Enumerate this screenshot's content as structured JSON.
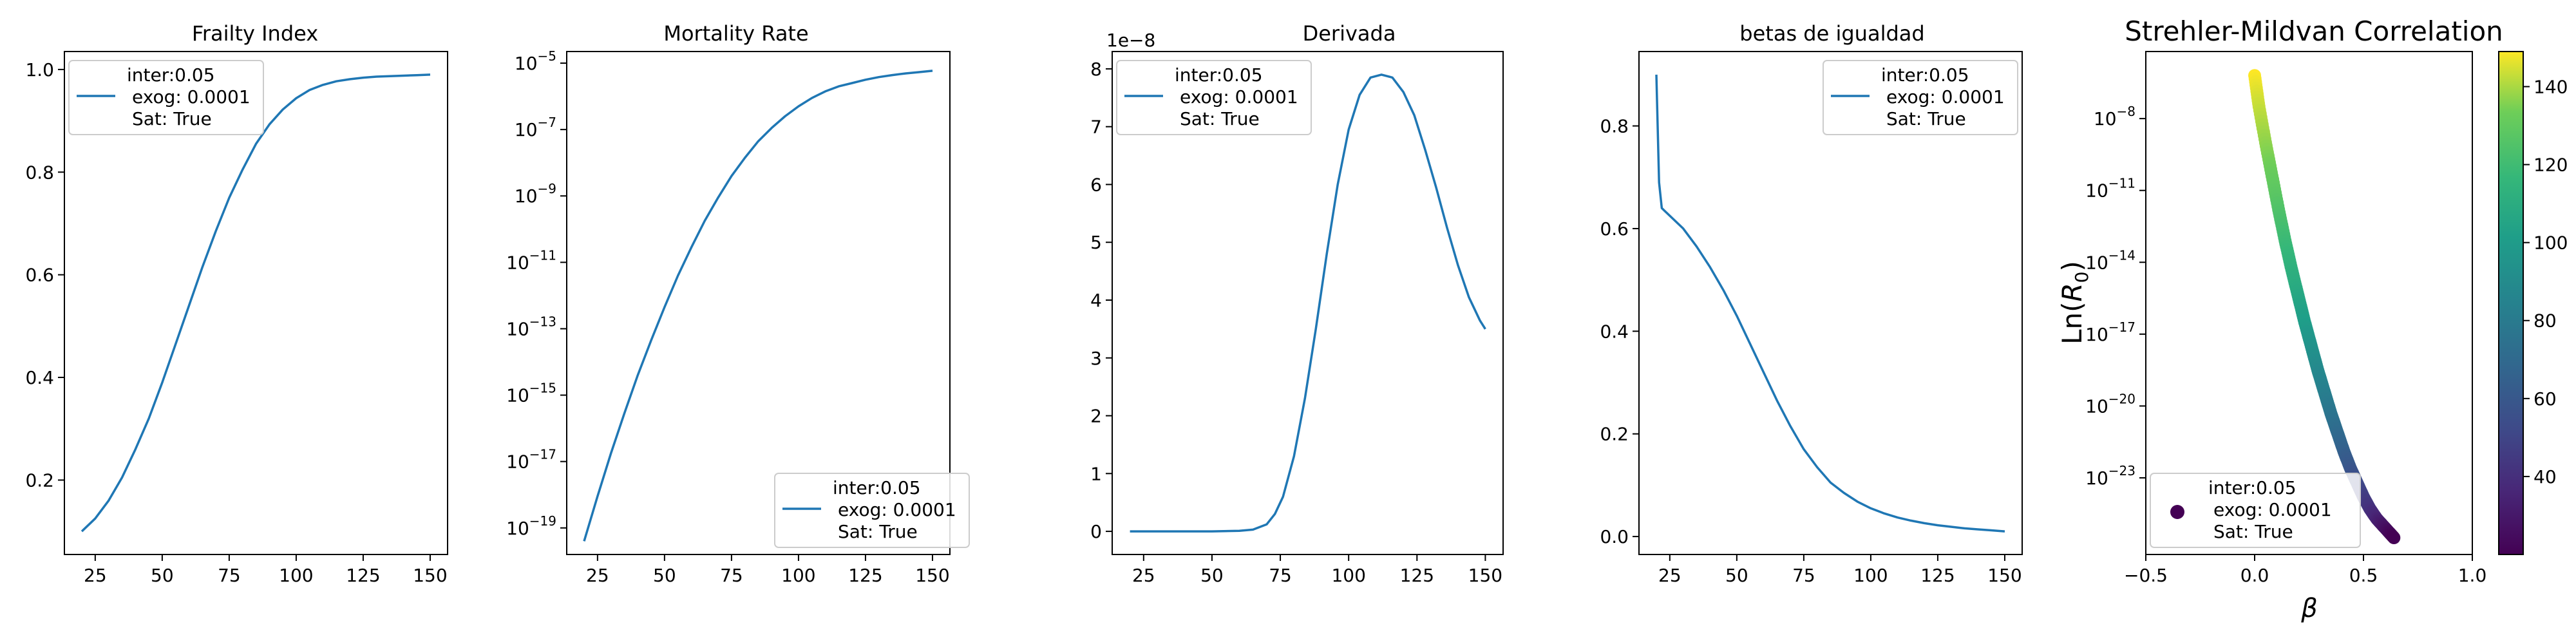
{
  "legend_lines": [
    "inter:0.05",
    "exog: 0.0001",
    "Sat: True"
  ],
  "line_color": "#1f77b4",
  "chart_data": [
    {
      "id": "frailty",
      "type": "line",
      "title": "Frailty Index",
      "xlim": [
        13.5,
        156.5
      ],
      "ylim": [
        0.055,
        1.035
      ],
      "x_ticks": [
        25,
        50,
        75,
        100,
        125,
        150
      ],
      "y_ticks": [
        0.2,
        0.4,
        0.6,
        0.8,
        1.0
      ],
      "y_tick_labels": [
        "0.2",
        "0.4",
        "0.6",
        "0.8",
        "1.0"
      ],
      "legend_loc": "upper-left",
      "x": [
        20,
        25,
        30,
        35,
        40,
        45,
        50,
        55,
        60,
        65,
        70,
        75,
        80,
        85,
        90,
        95,
        100,
        105,
        110,
        115,
        120,
        125,
        130,
        135,
        140,
        145,
        150
      ],
      "y": [
        0.1,
        0.125,
        0.16,
        0.205,
        0.26,
        0.32,
        0.39,
        0.465,
        0.54,
        0.615,
        0.685,
        0.75,
        0.805,
        0.855,
        0.893,
        0.922,
        0.944,
        0.96,
        0.97,
        0.977,
        0.981,
        0.984,
        0.986,
        0.987,
        0.988,
        0.989,
        0.99
      ]
    },
    {
      "id": "mortality",
      "type": "line",
      "title": "Mortality Rate",
      "yscale": "log",
      "xlim": [
        13.5,
        156.5
      ],
      "ylim_log10": [
        -19.8,
        -4.65
      ],
      "x_ticks": [
        25,
        50,
        75,
        100,
        125,
        150
      ],
      "y_ticks_log10": [
        -19,
        -17,
        -15,
        -13,
        -11,
        -9,
        -7,
        -5
      ],
      "y_tick_labels": [
        "-19",
        "-17",
        "-15",
        "-13",
        "-11",
        "-9",
        "-7",
        "-5"
      ],
      "legend_loc": "lower-right",
      "x": [
        20,
        25,
        30,
        35,
        40,
        45,
        50,
        55,
        60,
        65,
        70,
        75,
        80,
        85,
        90,
        95,
        100,
        105,
        110,
        115,
        120,
        125,
        130,
        135,
        140,
        145,
        150
      ],
      "y_log10": [
        -19.4,
        -18.05,
        -16.75,
        -15.55,
        -14.4,
        -13.35,
        -12.35,
        -11.4,
        -10.55,
        -9.75,
        -9.05,
        -8.4,
        -7.85,
        -7.35,
        -6.95,
        -6.6,
        -6.3,
        -6.05,
        -5.85,
        -5.7,
        -5.6,
        -5.5,
        -5.42,
        -5.36,
        -5.31,
        -5.27,
        -5.23
      ]
    },
    {
      "id": "derivada",
      "type": "line",
      "title": "Derivada",
      "scale_label": "1e−8",
      "xlim": [
        13.5,
        156.5
      ],
      "ylim": [
        -0.4,
        8.3
      ],
      "x_ticks": [
        25,
        50,
        75,
        100,
        125,
        150
      ],
      "y_ticks": [
        0,
        1,
        2,
        3,
        4,
        5,
        6,
        7,
        8
      ],
      "y_tick_labels": [
        "0",
        "1",
        "2",
        "3",
        "4",
        "5",
        "6",
        "7",
        "8"
      ],
      "legend_loc": "upper-left",
      "x": [
        20,
        30,
        40,
        50,
        60,
        65,
        70,
        73,
        76,
        80,
        84,
        88,
        92,
        96,
        100,
        104,
        108,
        112,
        116,
        120,
        124,
        128,
        132,
        136,
        140,
        144,
        148,
        150
      ],
      "y": [
        0,
        0,
        0,
        0,
        0.01,
        0.03,
        0.12,
        0.3,
        0.6,
        1.3,
        2.3,
        3.5,
        4.8,
        6.0,
        6.95,
        7.55,
        7.85,
        7.9,
        7.85,
        7.6,
        7.2,
        6.6,
        5.95,
        5.25,
        4.6,
        4.05,
        3.65,
        3.5
      ]
    },
    {
      "id": "betas",
      "type": "line",
      "title": "betas de igualdad",
      "xlim": [
        13.5,
        156.5
      ],
      "ylim": [
        -0.035,
        0.945
      ],
      "x_ticks": [
        25,
        50,
        75,
        100,
        125,
        150
      ],
      "y_ticks": [
        0.0,
        0.2,
        0.4,
        0.6,
        0.8
      ],
      "y_tick_labels": [
        "0.0",
        "0.2",
        "0.4",
        "0.6",
        "0.8"
      ],
      "legend_loc": "upper-right",
      "x": [
        20,
        21,
        22,
        23,
        25,
        30,
        35,
        40,
        45,
        50,
        55,
        60,
        65,
        70,
        75,
        80,
        85,
        90,
        95,
        100,
        105,
        110,
        115,
        120,
        125,
        130,
        135,
        140,
        145,
        150
      ],
      "y": [
        0.9,
        0.69,
        0.64,
        0.635,
        0.625,
        0.6,
        0.565,
        0.525,
        0.48,
        0.43,
        0.375,
        0.32,
        0.265,
        0.215,
        0.17,
        0.135,
        0.105,
        0.085,
        0.068,
        0.055,
        0.045,
        0.037,
        0.031,
        0.026,
        0.022,
        0.019,
        0.016,
        0.014,
        0.012,
        0.01
      ]
    },
    {
      "id": "strehler",
      "type": "scatter",
      "title": "Strehler-Mildvan Correlation",
      "xlabel": "β",
      "ylabel_prefix": "Ln(",
      "ylabel_var": "R",
      "ylabel_sub": "0",
      "ylabel_suffix": ")",
      "yscale": "log",
      "xlim": [
        -0.5,
        1.0
      ],
      "ylim_log10": [
        -26.2,
        -5.2
      ],
      "x_ticks": [
        -0.5,
        0.0,
        0.5,
        1.0
      ],
      "x_tick_labels": [
        "−0.5",
        "0.0",
        "0.5",
        "1.0"
      ],
      "y_ticks_log10": [
        -23,
        -20,
        -17,
        -14,
        -11,
        -8
      ],
      "y_tick_labels": [
        "-23",
        "-20",
        "-17",
        "-14",
        "-11",
        "-8"
      ],
      "legend_loc": "lower-left",
      "colorbar": {
        "min": 20,
        "max": 149,
        "ticks": [
          40,
          60,
          80,
          100,
          120,
          140
        ],
        "tick_labels": [
          "40",
          "60",
          "80",
          "100",
          "120",
          "140"
        ]
      },
      "points_x": [
        0.0,
        0.02,
        0.05,
        0.08,
        0.11,
        0.14,
        0.17,
        0.2,
        0.23,
        0.26,
        0.29,
        0.32,
        0.35,
        0.38,
        0.41,
        0.44,
        0.47,
        0.5,
        0.53,
        0.56,
        0.59,
        0.62,
        0.64
      ],
      "points_y_log10": [
        -6.2,
        -7.5,
        -9.0,
        -10.4,
        -11.8,
        -13.1,
        -14.3,
        -15.4,
        -16.5,
        -17.5,
        -18.5,
        -19.4,
        -20.3,
        -21.1,
        -21.9,
        -22.6,
        -23.2,
        -23.8,
        -24.3,
        -24.7,
        -25.0,
        -25.3,
        -25.5
      ],
      "points_color_value": [
        149,
        143,
        137,
        131,
        125,
        119,
        113,
        107,
        101,
        95,
        89,
        83,
        77,
        71,
        65,
        59,
        53,
        47,
        41,
        35,
        29,
        23,
        20
      ]
    }
  ]
}
